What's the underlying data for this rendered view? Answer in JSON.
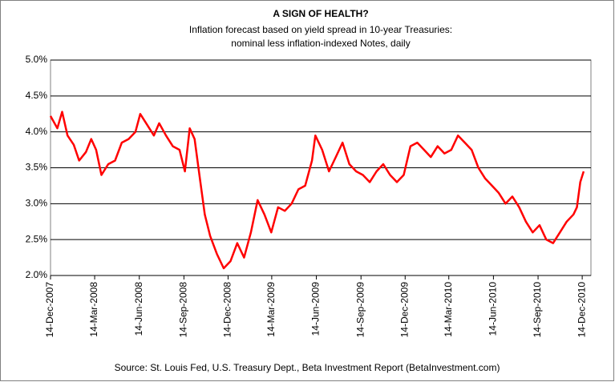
{
  "chart_data": {
    "type": "line",
    "title": "A SIGN OF HEALTH?",
    "subtitle": [
      "Inflation forecast based on yield spread in 10-year Treasuries:",
      "nominal less inflation-indexed Notes, daily"
    ],
    "source": "Source: St. Louis Fed, U.S. Treasury Dept., Beta Investment Report (BetaInvestment.com)",
    "x": [
      "2007-12-14",
      "2007-12-28",
      "2008-01-07",
      "2008-01-18",
      "2008-01-31",
      "2008-02-11",
      "2008-02-25",
      "2008-03-07",
      "2008-03-17",
      "2008-03-28",
      "2008-04-11",
      "2008-04-25",
      "2008-05-09",
      "2008-05-23",
      "2008-06-06",
      "2008-06-16",
      "2008-06-30",
      "2008-07-14",
      "2008-07-25",
      "2008-08-08",
      "2008-08-22",
      "2008-09-05",
      "2008-09-16",
      "2008-09-26",
      "2008-10-06",
      "2008-10-17",
      "2008-10-27",
      "2008-11-07",
      "2008-11-21",
      "2008-12-05",
      "2008-12-19",
      "2009-01-02",
      "2009-01-16",
      "2009-01-30",
      "2009-02-13",
      "2009-02-27",
      "2009-03-13",
      "2009-03-27",
      "2009-04-10",
      "2009-04-24",
      "2009-05-08",
      "2009-05-22",
      "2009-06-05",
      "2009-06-12",
      "2009-06-26",
      "2009-07-10",
      "2009-07-24",
      "2009-08-07",
      "2009-08-21",
      "2009-09-04",
      "2009-09-18",
      "2009-10-02",
      "2009-10-16",
      "2009-10-30",
      "2009-11-13",
      "2009-11-27",
      "2009-12-11",
      "2009-12-25",
      "2010-01-08",
      "2010-01-22",
      "2010-02-05",
      "2010-02-19",
      "2010-03-05",
      "2010-03-19",
      "2010-04-02",
      "2010-04-16",
      "2010-04-30",
      "2010-05-14",
      "2010-05-28",
      "2010-06-11",
      "2010-06-25",
      "2010-07-09",
      "2010-07-23",
      "2010-08-06",
      "2010-08-20",
      "2010-09-03",
      "2010-09-17",
      "2010-10-01",
      "2010-10-15",
      "2010-10-29",
      "2010-11-12",
      "2010-11-26",
      "2010-12-03",
      "2010-12-10",
      "2010-12-17"
    ],
    "series": [
      {
        "name": "Inflation forecast",
        "color": "#ff0000",
        "values": [
          4.22,
          4.05,
          4.28,
          3.95,
          3.82,
          3.6,
          3.72,
          3.9,
          3.75,
          3.4,
          3.55,
          3.6,
          3.85,
          3.9,
          4.0,
          4.25,
          4.1,
          3.95,
          4.12,
          3.95,
          3.8,
          3.75,
          3.45,
          4.05,
          3.9,
          3.35,
          2.85,
          2.55,
          2.3,
          2.1,
          2.2,
          2.45,
          2.25,
          2.6,
          3.05,
          2.85,
          2.6,
          2.95,
          2.9,
          3.0,
          3.2,
          3.25,
          3.6,
          3.95,
          3.75,
          3.45,
          3.65,
          3.85,
          3.55,
          3.45,
          3.4,
          3.3,
          3.45,
          3.55,
          3.4,
          3.3,
          3.4,
          3.8,
          3.85,
          3.75,
          3.65,
          3.8,
          3.7,
          3.75,
          3.95,
          3.85,
          3.75,
          3.5,
          3.35,
          3.25,
          3.15,
          3.0,
          3.1,
          2.95,
          2.75,
          2.6,
          2.7,
          2.5,
          2.45,
          2.6,
          2.75,
          2.85,
          2.95,
          3.3,
          3.45
        ]
      }
    ],
    "xlim": [
      "2007-12-14",
      "2011-01-01"
    ],
    "xticks": [
      {
        "value": "2007-12-14",
        "label": "14-Dec-2007"
      },
      {
        "value": "2008-03-14",
        "label": "14-Mar-2008"
      },
      {
        "value": "2008-06-14",
        "label": "14-Jun-2008"
      },
      {
        "value": "2008-09-14",
        "label": "14-Sep-2008"
      },
      {
        "value": "2008-12-14",
        "label": "14-Dec-2008"
      },
      {
        "value": "2009-03-14",
        "label": "14-Mar-2009"
      },
      {
        "value": "2009-06-14",
        "label": "14-Jun-2009"
      },
      {
        "value": "2009-09-14",
        "label": "14-Sep-2009"
      },
      {
        "value": "2009-12-14",
        "label": "14-Dec-2009"
      },
      {
        "value": "2010-03-14",
        "label": "14-Mar-2010"
      },
      {
        "value": "2010-06-14",
        "label": "14-Jun-2010"
      },
      {
        "value": "2010-09-14",
        "label": "14-Sep-2010"
      },
      {
        "value": "2010-12-14",
        "label": "14-Dec-2010"
      }
    ],
    "ylim": [
      2,
      5
    ],
    "yticks": [
      {
        "value": 2,
        "label": "2.0%"
      },
      {
        "value": 2.5,
        "label": "2.5%"
      },
      {
        "value": 3,
        "label": "3.0%"
      },
      {
        "value": 3.5,
        "label": "3.5%"
      },
      {
        "value": 4,
        "label": "4.0%"
      },
      {
        "value": 4.5,
        "label": "4.5%"
      },
      {
        "value": 5,
        "label": "5.0%"
      }
    ],
    "grid": true
  }
}
